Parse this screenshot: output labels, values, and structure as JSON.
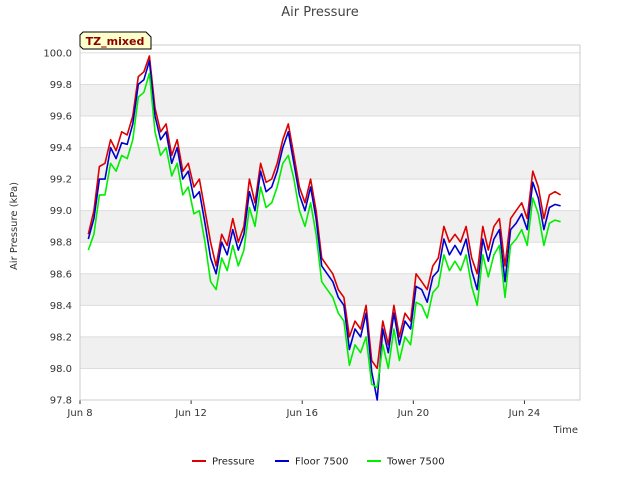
{
  "chart_data": {
    "type": "line",
    "title": "Air Pressure",
    "xlabel": "Time",
    "ylabel": "Air Pressure (kPa)",
    "annotation": "TZ_mixed",
    "x_ticks": [
      "Jun 8",
      "Jun 12",
      "Jun 16",
      "Jun 20",
      "Jun 24"
    ],
    "x_tick_days": [
      8,
      12,
      16,
      20,
      24
    ],
    "xlim_days": [
      8,
      26.0
    ],
    "ylim": [
      97.8,
      100.05
    ],
    "y_ticks": [
      97.8,
      98.0,
      98.2,
      98.4,
      98.6,
      98.8,
      99.0,
      99.2,
      99.4,
      99.6,
      99.8,
      100.0
    ],
    "grid": "horizontal bands",
    "legend_position": "bottom",
    "series": [
      {
        "name": "Pressure",
        "color": "#dd0000",
        "x_days": [
          8.3,
          8.5,
          8.7,
          8.9,
          9.1,
          9.3,
          9.5,
          9.7,
          9.9,
          10.1,
          10.3,
          10.5,
          10.7,
          10.9,
          11.1,
          11.3,
          11.5,
          11.7,
          11.9,
          12.1,
          12.3,
          12.5,
          12.7,
          12.9,
          13.1,
          13.3,
          13.5,
          13.7,
          13.9,
          14.1,
          14.3,
          14.5,
          14.7,
          14.9,
          15.1,
          15.3,
          15.5,
          15.7,
          15.9,
          16.1,
          16.3,
          16.5,
          16.7,
          16.9,
          17.1,
          17.3,
          17.5,
          17.7,
          17.9,
          18.1,
          18.3,
          18.5,
          18.7,
          18.9,
          19.1,
          19.3,
          19.5,
          19.7,
          19.9,
          20.1,
          20.3,
          20.5,
          20.7,
          20.9,
          21.1,
          21.3,
          21.5,
          21.7,
          21.9,
          22.1,
          22.3,
          22.5,
          22.7,
          22.9,
          23.1,
          23.3,
          23.5,
          23.7,
          23.9,
          24.1,
          24.3,
          24.5,
          24.7,
          24.9,
          25.1,
          25.3
        ],
        "values": [
          98.85,
          99.0,
          99.28,
          99.3,
          99.45,
          99.38,
          99.5,
          99.48,
          99.6,
          99.85,
          99.88,
          99.98,
          99.65,
          99.5,
          99.55,
          99.35,
          99.45,
          99.25,
          99.3,
          99.15,
          99.2,
          99.0,
          98.8,
          98.65,
          98.85,
          98.78,
          98.95,
          98.8,
          98.9,
          99.2,
          99.05,
          99.3,
          99.18,
          99.2,
          99.3,
          99.45,
          99.55,
          99.35,
          99.15,
          99.05,
          99.2,
          99.0,
          98.7,
          98.65,
          98.6,
          98.5,
          98.45,
          98.2,
          98.3,
          98.25,
          98.4,
          98.05,
          98.0,
          98.3,
          98.15,
          98.4,
          98.2,
          98.35,
          98.3,
          98.6,
          98.55,
          98.5,
          98.65,
          98.7,
          98.9,
          98.8,
          98.85,
          98.8,
          98.9,
          98.7,
          98.6,
          98.9,
          98.75,
          98.9,
          98.95,
          98.65,
          98.95,
          99.0,
          99.05,
          98.95,
          99.25,
          99.15,
          98.95,
          99.1,
          99.12,
          99.1
        ]
      },
      {
        "name": "Floor 7500",
        "color": "#0000cc",
        "x_days": [
          8.3,
          8.5,
          8.7,
          8.9,
          9.1,
          9.3,
          9.5,
          9.7,
          9.9,
          10.1,
          10.3,
          10.5,
          10.7,
          10.9,
          11.1,
          11.3,
          11.5,
          11.7,
          11.9,
          12.1,
          12.3,
          12.5,
          12.7,
          12.9,
          13.1,
          13.3,
          13.5,
          13.7,
          13.9,
          14.1,
          14.3,
          14.5,
          14.7,
          14.9,
          15.1,
          15.3,
          15.5,
          15.7,
          15.9,
          16.1,
          16.3,
          16.5,
          16.7,
          16.9,
          17.1,
          17.3,
          17.5,
          17.7,
          17.9,
          18.1,
          18.3,
          18.5,
          18.7,
          18.9,
          19.1,
          19.3,
          19.5,
          19.7,
          19.9,
          20.1,
          20.3,
          20.5,
          20.7,
          20.9,
          21.1,
          21.3,
          21.5,
          21.7,
          21.9,
          22.1,
          22.3,
          22.5,
          22.7,
          22.9,
          23.1,
          23.3,
          23.5,
          23.7,
          23.9,
          24.1,
          24.3,
          24.5,
          24.7,
          24.9,
          25.1,
          25.3
        ],
        "values": [
          98.82,
          98.95,
          99.2,
          99.2,
          99.4,
          99.33,
          99.43,
          99.42,
          99.55,
          99.8,
          99.83,
          99.95,
          99.6,
          99.45,
          99.5,
          99.3,
          99.4,
          99.2,
          99.25,
          99.08,
          99.12,
          98.92,
          98.7,
          98.6,
          98.8,
          98.72,
          98.88,
          98.75,
          98.85,
          99.12,
          99.0,
          99.25,
          99.12,
          99.15,
          99.25,
          99.4,
          99.5,
          99.3,
          99.1,
          99.0,
          99.15,
          98.95,
          98.65,
          98.6,
          98.55,
          98.45,
          98.4,
          98.12,
          98.25,
          98.2,
          98.35,
          97.98,
          97.8,
          98.25,
          98.1,
          98.35,
          98.15,
          98.3,
          98.25,
          98.52,
          98.5,
          98.42,
          98.58,
          98.62,
          98.82,
          98.72,
          98.78,
          98.72,
          98.82,
          98.62,
          98.5,
          98.82,
          98.68,
          98.82,
          98.88,
          98.55,
          98.88,
          98.92,
          98.98,
          98.88,
          99.18,
          99.08,
          98.88,
          99.02,
          99.04,
          99.03
        ]
      },
      {
        "name": "Tower 7500",
        "color": "#00ee00",
        "x_days": [
          8.3,
          8.5,
          8.7,
          8.9,
          9.1,
          9.3,
          9.5,
          9.7,
          9.9,
          10.1,
          10.3,
          10.5,
          10.7,
          10.9,
          11.1,
          11.3,
          11.5,
          11.7,
          11.9,
          12.1,
          12.3,
          12.5,
          12.7,
          12.9,
          13.1,
          13.3,
          13.5,
          13.7,
          13.9,
          14.1,
          14.3,
          14.5,
          14.7,
          14.9,
          15.1,
          15.3,
          15.5,
          15.7,
          15.9,
          16.1,
          16.3,
          16.5,
          16.7,
          16.9,
          17.1,
          17.3,
          17.5,
          17.7,
          17.9,
          18.1,
          18.3,
          18.5,
          18.7,
          18.9,
          19.1,
          19.3,
          19.5,
          19.7,
          19.9,
          20.1,
          20.3,
          20.5,
          20.7,
          20.9,
          21.1,
          21.3,
          21.5,
          21.7,
          21.9,
          22.1,
          22.3,
          22.5,
          22.7,
          22.9,
          23.1,
          23.3,
          23.5,
          23.7,
          23.9,
          24.1,
          24.3,
          24.5,
          24.7,
          24.9,
          25.1,
          25.3
        ],
        "values": [
          98.75,
          98.85,
          99.1,
          99.1,
          99.3,
          99.25,
          99.35,
          99.33,
          99.45,
          99.72,
          99.75,
          99.87,
          99.5,
          99.35,
          99.4,
          99.22,
          99.3,
          99.1,
          99.15,
          98.98,
          99.0,
          98.8,
          98.55,
          98.5,
          98.7,
          98.62,
          98.78,
          98.65,
          98.75,
          99.02,
          98.9,
          99.15,
          99.02,
          99.05,
          99.15,
          99.3,
          99.35,
          99.2,
          99.0,
          98.9,
          99.05,
          98.85,
          98.55,
          98.5,
          98.45,
          98.35,
          98.3,
          98.02,
          98.15,
          98.1,
          98.2,
          97.9,
          97.88,
          98.15,
          98.0,
          98.25,
          98.05,
          98.2,
          98.15,
          98.42,
          98.4,
          98.32,
          98.48,
          98.52,
          98.72,
          98.62,
          98.68,
          98.62,
          98.72,
          98.52,
          98.4,
          98.72,
          98.58,
          98.72,
          98.78,
          98.45,
          98.78,
          98.82,
          98.88,
          98.78,
          99.08,
          98.98,
          98.78,
          98.92,
          98.94,
          98.93
        ]
      }
    ]
  }
}
